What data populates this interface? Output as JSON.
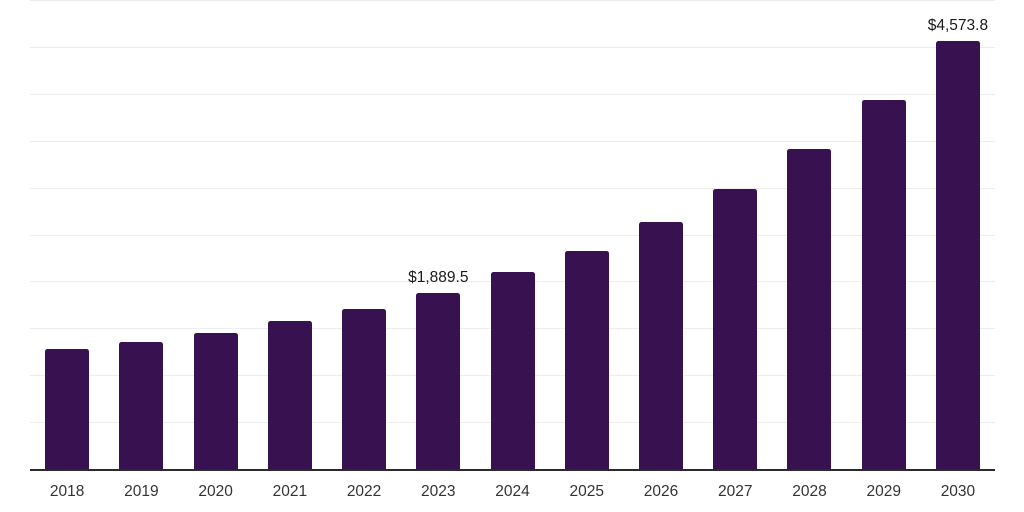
{
  "chart_data": {
    "type": "bar",
    "title": "",
    "xlabel": "",
    "ylabel": "",
    "categories": [
      "2018",
      "2019",
      "2020",
      "2021",
      "2022",
      "2023",
      "2024",
      "2025",
      "2026",
      "2027",
      "2028",
      "2029",
      "2030"
    ],
    "values": [
      1295,
      1370,
      1465,
      1590,
      1720,
      1889.5,
      2115,
      2340,
      2640,
      2995,
      3425,
      3950,
      4573.8
    ],
    "bar_labels": [
      "",
      "",
      "",
      "",
      "",
      "$1,889.5",
      "",
      "",
      "",
      "",
      "",
      "",
      "$4,573.8"
    ],
    "ylim": [
      0,
      5000
    ],
    "gridline_step": 500,
    "grid": "horizontal-only",
    "legend": "none",
    "y_tick_labels_visible": false
  },
  "colors": {
    "background": "#ffffff",
    "bar": "#371150",
    "gridline": "#ededed",
    "axis_line": "#2b2b2e",
    "value_label": "#1a1a1a",
    "tick_label": "#333333"
  }
}
